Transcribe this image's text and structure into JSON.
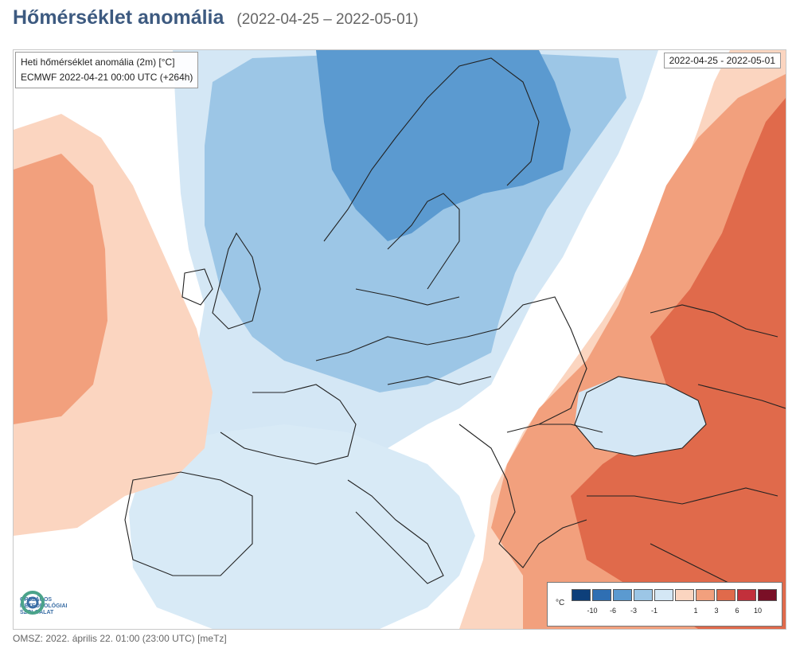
{
  "header": {
    "title": "Hőmérséklet anomália",
    "date_range": "(2022-04-25 – 2022-05-01)"
  },
  "map": {
    "info_line1": "Heti hőmérséklet anomália (2m) [°C]",
    "info_line2": "ECMWF 2022-04-21 00:00 UTC (+264h)",
    "date_box": "2022-04-25 - 2022-05-01",
    "logo": {
      "line1": "ORSZÁGOS",
      "line2": "METEOROLÓGIAI",
      "line3": "SZOLGÁLAT"
    },
    "legend": {
      "unit": "°C",
      "cold_ticks": [
        "-10",
        "-6",
        "-3",
        "-1"
      ],
      "warm_ticks": [
        "1",
        "3",
        "6",
        "10"
      ],
      "cold_colors": [
        "#0d3f7a",
        "#2f6fb3",
        "#5b9ad0",
        "#9cc6e6",
        "#d4e7f5"
      ],
      "warm_colors": [
        "#fbd5c0",
        "#f2a07d",
        "#e06a4b",
        "#c2303b",
        "#7a0f26"
      ]
    }
  },
  "footer": {
    "text": "OMSZ: 2022. április 22. 01:00 (23:00 UTC)  [meTz]"
  }
}
